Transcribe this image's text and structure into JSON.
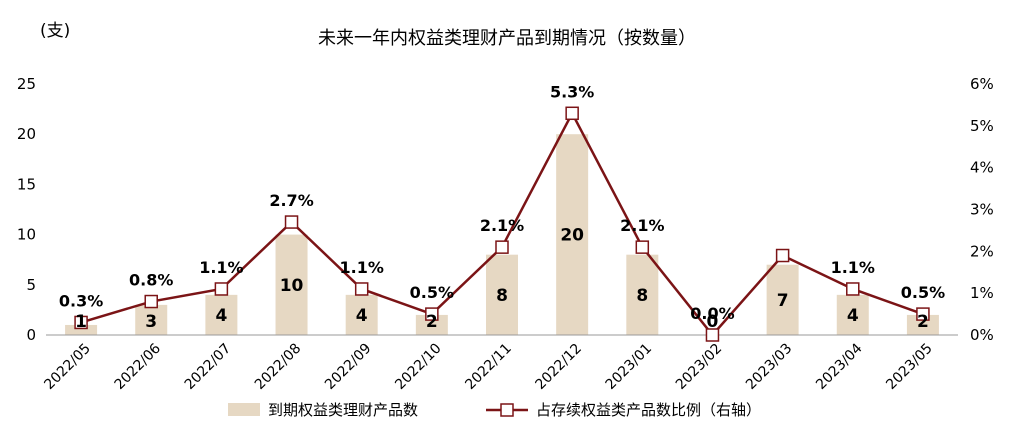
{
  "chart_data": {
    "type": "bar",
    "title": "未来一年内权益类理财产品到期情况（按数量）",
    "left_unit": "(支)",
    "categories": [
      "2022/05",
      "2022/06",
      "2022/07",
      "2022/08",
      "2022/09",
      "2022/10",
      "2022/11",
      "2022/12",
      "2023/01",
      "2023/02",
      "2023/03",
      "2023/04",
      "2023/05"
    ],
    "series": [
      {
        "name": "到期权益类理财产品数",
        "type": "bar",
        "axis": "left",
        "color": "#e6d8c3",
        "values": [
          1,
          3,
          4,
          10,
          4,
          2,
          8,
          20,
          8,
          0,
          7,
          4,
          2
        ],
        "labels": [
          "1",
          "3",
          "4",
          "10",
          "4",
          "2",
          "8",
          "20",
          "8",
          "0",
          "7",
          "4",
          "2"
        ]
      },
      {
        "name": "占存续权益类产品数比例（右轴）",
        "type": "line",
        "axis": "right",
        "color": "#7b1416",
        "values": [
          0.3,
          0.8,
          1.1,
          2.7,
          1.1,
          0.5,
          2.1,
          5.3,
          2.1,
          0.0,
          1.9,
          1.1,
          0.5
        ],
        "labels": [
          "0.3%",
          "0.8%",
          "1.1%",
          "2.7%",
          "1.1%",
          "0.5%",
          "2.1%",
          "5.3%",
          "2.1%",
          "0.0%",
          "",
          "1.1%",
          "0.5%"
        ]
      }
    ],
    "left_axis": {
      "ylim": [
        0,
        25
      ],
      "ticks": [
        "0",
        "5",
        "10",
        "15",
        "20",
        "25"
      ]
    },
    "right_axis": {
      "ylim": [
        0,
        6
      ],
      "ticks": [
        "0%",
        "1%",
        "2%",
        "3%",
        "4%",
        "5%",
        "6%"
      ]
    },
    "grid": false,
    "legend_position": "bottom"
  }
}
